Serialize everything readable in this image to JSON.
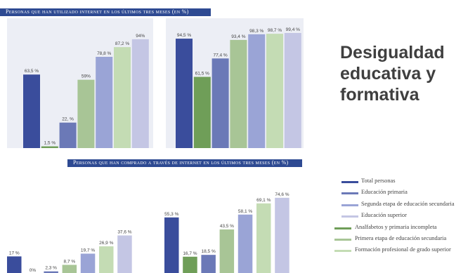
{
  "slide_title_lines": [
    "Desigualdad",
    "educativa y",
    "formativa"
  ],
  "colors": {
    "banner": "#2e4a92",
    "panel_bg": "#eceef5",
    "series": [
      "#3a4d9c",
      "#6f9e58",
      "#6b79b7",
      "#a8c596",
      "#9aa4d6",
      "#c4dcb4",
      "#c4c6e4"
    ]
  },
  "chart_data": [
    {
      "type": "bar",
      "title": "Personas que han utilizado internet en los últimos tres meses (en %)",
      "groups": 2,
      "series": [
        {
          "name": "Total personas",
          "values": [
            63.5,
            94.5
          ]
        },
        {
          "name": "Analfabetos y primaria incompleta",
          "values": [
            1.5,
            61.5
          ]
        },
        {
          "name": "Educación primaria",
          "values": [
            22,
            77.4
          ]
        },
        {
          "name": "Primera etapa de educación secundaria",
          "values": [
            59,
            93.4
          ]
        },
        {
          "name": "Segunda etapa de educación secundaria",
          "values": [
            78.8,
            98.3
          ]
        },
        {
          "name": "Formación profesional de grado superior",
          "values": [
            87.2,
            98.7
          ]
        },
        {
          "name": "Educación superior",
          "values": [
            94,
            99.4
          ]
        }
      ],
      "value_labels": [
        [
          "63,5 %",
          "1,5 %",
          "22, %",
          "59%",
          "78,8 %",
          "87,2 %",
          "94%"
        ],
        [
          "94,5 %",
          "61,5 %",
          "77,4 %",
          "93,4 %",
          "98,3 %",
          "98,7 %",
          "99,4 %"
        ]
      ],
      "ylim": [
        0,
        100
      ]
    },
    {
      "type": "bar",
      "title": "Personas que han comprado a través de internet en los últimos tres meses (en %)",
      "groups": 2,
      "series": [
        {
          "name": "Total personas",
          "values": [
            17,
            55.3
          ]
        },
        {
          "name": "Analfabetos y primaria incompleta",
          "values": [
            0,
            16.7
          ]
        },
        {
          "name": "Educación primaria",
          "values": [
            2.3,
            18.5
          ]
        },
        {
          "name": "Primera etapa de educación secundaria",
          "values": [
            8.7,
            43.5
          ]
        },
        {
          "name": "Segunda etapa de educación secundaria",
          "values": [
            19.7,
            58.1
          ]
        },
        {
          "name": "Formación profesional de grado superior",
          "values": [
            26.9,
            69.1
          ]
        },
        {
          "name": "Educación superior",
          "values": [
            37.6,
            74.6
          ]
        }
      ],
      "value_labels": [
        [
          "17 %",
          "0%",
          "2,3 %",
          "8,7 %",
          "19,7 %",
          "26,9 %",
          "37,6 %"
        ],
        [
          "55,3 %",
          "16,7 %",
          "18,5 %",
          "43,5 %",
          "58,1 %",
          "69,1 %",
          "74,6 %"
        ]
      ],
      "ylim": [
        0,
        100
      ]
    }
  ],
  "legend": [
    {
      "label": "Total personas",
      "color": "#3a4d9c"
    },
    {
      "label": "Educación primaria",
      "color": "#6b79b7"
    },
    {
      "label": "Segunda etapa de educación secundaria",
      "color": "#9aa4d6"
    },
    {
      "label": "Educación superior",
      "color": "#c4c6e4"
    },
    {
      "label": "Analfabetos y primaria incompleta",
      "color": "#6f9e58"
    },
    {
      "label": "Primera etapa de educación secundaria",
      "color": "#a8c596"
    },
    {
      "label": "Formación profesional de grado superior",
      "color": "#c4dcb4"
    }
  ]
}
